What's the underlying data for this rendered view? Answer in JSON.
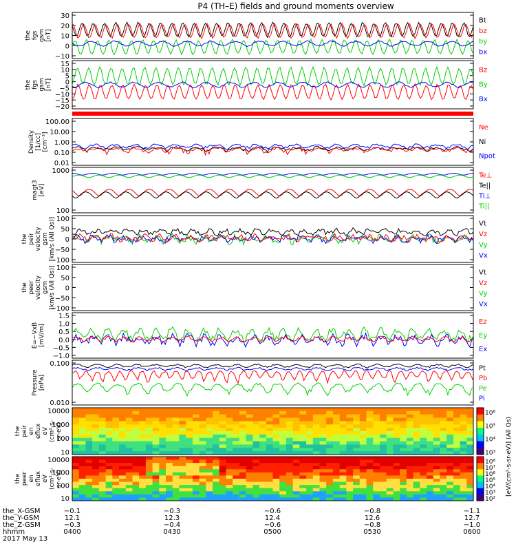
{
  "title": "P4 (TH–E) fields and ground moments overview",
  "colors": {
    "black": "#000000",
    "red": "#ff0000",
    "green": "#00d000",
    "blue": "#0000ff"
  },
  "chart_data": [
    {
      "type": "line",
      "ylabel": [
        "the",
        "fgs",
        "gsm",
        "[nT]"
      ],
      "yrange": [
        -10,
        30
      ],
      "yticks": [
        "30",
        "20",
        "10",
        "0",
        "−10"
      ],
      "legend": [
        {
          "name": "Bt",
          "color": "black"
        },
        {
          "name": "bz",
          "color": "red"
        },
        {
          "name": "by",
          "color": "green"
        },
        {
          "name": "bx",
          "color": "blue"
        }
      ],
      "series": [
        {
          "name": "Bt",
          "color": "black",
          "base": 15,
          "amp": 6,
          "period": 0.028,
          "noise": 0.6,
          "start": 0,
          "end": 1
        },
        {
          "name": "bz",
          "color": "red",
          "base": 14,
          "amp": 6,
          "period": 0.028,
          "noise": 0.6,
          "start": 0,
          "end": 1
        },
        {
          "name": "by",
          "color": "green",
          "base": 0,
          "amp": 6,
          "period": 0.028,
          "noise": 0.8,
          "start": 0,
          "end": 1
        },
        {
          "name": "bx",
          "color": "blue",
          "base": 3,
          "amp": 2,
          "period": 0.06,
          "noise": 0.6,
          "start": 0,
          "end": 1
        }
      ]
    },
    {
      "type": "line",
      "ylabel": [
        "the",
        "fgs",
        "gsm",
        "[nT]"
      ],
      "yrange": [
        -22,
        18
      ],
      "yticks": [
        "15",
        "10",
        "5",
        "0",
        "−5",
        "−10",
        "−15",
        "−20"
      ],
      "legend": [
        {
          "name": "Bz",
          "color": "red"
        },
        {
          "name": "By",
          "color": "green"
        },
        {
          "name": "Bx",
          "color": "blue"
        }
      ],
      "series": [
        {
          "name": "Bz",
          "color": "red",
          "base": -8,
          "amp": 6,
          "period": 0.028,
          "noise": 0.7,
          "start": 0,
          "end": 1
        },
        {
          "name": "By",
          "color": "green",
          "base": 5,
          "amp": 7,
          "period": 0.028,
          "noise": 0.8,
          "start": 0,
          "end": 1
        },
        {
          "name": "Bx",
          "color": "blue",
          "base": -2,
          "amp": 2,
          "period": 0.06,
          "noise": 0.5,
          "start": 0,
          "end": 1
        }
      ]
    },
    {
      "type": "line",
      "log": true,
      "ylabel": [
        "Density",
        "[1/cc]",
        "[cm⁻³]"
      ],
      "yrange": [
        0.01,
        200
      ],
      "yticks": [
        "100.00",
        "10.00",
        "1.00",
        "0.10",
        "0.01"
      ],
      "legend": [
        {
          "name": "Ne",
          "color": "red"
        },
        {
          "name": "Ni",
          "color": "black"
        },
        {
          "name": "Npot",
          "color": "blue"
        }
      ],
      "series": [
        {
          "name": "Npot",
          "color": "blue",
          "base": 0.6,
          "amp": 0.2,
          "period": 0.05,
          "noise": 0.15,
          "start": 0,
          "end": 1
        },
        {
          "name": "Ni",
          "color": "black",
          "base": 0.35,
          "amp": 0.1,
          "period": 0.05,
          "noise": 0.1,
          "start": 0,
          "end": 1
        },
        {
          "name": "Ne",
          "color": "red",
          "base": 0.28,
          "amp": 0.1,
          "period": 0.05,
          "noise": 0.1,
          "start": 0,
          "end": 1
        }
      ]
    },
    {
      "type": "line",
      "log": true,
      "ylabel": [
        "magt3",
        "[eV]"
      ],
      "yrange": [
        40,
        20000
      ],
      "yticks": [
        "1000",
        "100"
      ],
      "legend": [
        {
          "name": "Te⊥",
          "color": "red"
        },
        {
          "name": "Te||",
          "color": "black"
        },
        {
          "name": "Ti⊥",
          "color": "blue"
        },
        {
          "name": "Ti||",
          "color": "green"
        }
      ],
      "series": [
        {
          "name": "Ti⊥",
          "color": "blue",
          "base": 8000,
          "amp": 1000,
          "period": 0.05,
          "noise": 0.05,
          "start": 0,
          "end": 1
        },
        {
          "name": "Ti||",
          "color": "green",
          "base": 6000,
          "amp": 1000,
          "period": 0.05,
          "noise": 0.05,
          "start": 0,
          "end": 1
        },
        {
          "name": "Te⊥",
          "color": "red",
          "base": 700,
          "amp": 300,
          "period": 0.05,
          "noise": 0.05,
          "start": 0,
          "end": 1
        },
        {
          "name": "Te||",
          "color": "black",
          "base": 500,
          "amp": 200,
          "period": 0.05,
          "noise": 0.05,
          "start": 0,
          "end": 1
        }
      ]
    },
    {
      "type": "line",
      "ylabel": [
        "the",
        "peir",
        "velocity",
        "gsm",
        "[km/s (All Qs)]"
      ],
      "yrange": [
        -100,
        100
      ],
      "yticks": [
        "100",
        "50",
        "0",
        "−50",
        "−100"
      ],
      "legend": [
        {
          "name": "Vt",
          "color": "black"
        },
        {
          "name": "Vz",
          "color": "red"
        },
        {
          "name": "Vy",
          "color": "green"
        },
        {
          "name": "Vx",
          "color": "blue"
        }
      ],
      "series": [
        {
          "name": "Vt",
          "color": "black",
          "base": 30,
          "amp": 8,
          "period": 0.04,
          "noise": 10,
          "start": 0,
          "end": 1
        },
        {
          "name": "Vy",
          "color": "green",
          "base": 0,
          "amp": 10,
          "period": 0.04,
          "noise": 15,
          "start": 0,
          "end": 1
        },
        {
          "name": "Vx",
          "color": "blue",
          "base": 0,
          "amp": 8,
          "period": 0.04,
          "noise": 12,
          "start": 0,
          "end": 1
        },
        {
          "name": "Vz",
          "color": "red",
          "base": 5,
          "amp": 8,
          "period": 0.04,
          "noise": 12,
          "start": 0,
          "end": 1
        }
      ]
    },
    {
      "type": "line",
      "ylabel": [
        "the",
        "peer",
        "velocity",
        "gsm",
        "[km/s (All Qs)]"
      ],
      "yrange": [
        -100,
        100
      ],
      "yticks": [
        "100",
        "50",
        "0",
        "−50",
        "−100"
      ],
      "legend": [
        {
          "name": "Vt",
          "color": "black"
        },
        {
          "name": "Vz",
          "color": "red"
        },
        {
          "name": "Vy",
          "color": "green"
        },
        {
          "name": "Vx",
          "color": "blue"
        }
      ],
      "series": []
    },
    {
      "type": "line",
      "ylabel": [
        "E=−VxB",
        "[mV/m]"
      ],
      "yrange": [
        -1.0,
        1.5
      ],
      "yticks": [
        "1.5",
        "1.0",
        "0.5",
        "0.0",
        "−0.5",
        "−1.0"
      ],
      "legend": [
        {
          "name": "Ez",
          "color": "red"
        },
        {
          "name": "Ey",
          "color": "green"
        },
        {
          "name": "Ex",
          "color": "blue"
        }
      ],
      "series": [
        {
          "name": "Ey",
          "color": "green",
          "base": 0.3,
          "amp": 0.25,
          "period": 0.04,
          "noise": 0.18,
          "start": 0,
          "end": 1
        },
        {
          "name": "Ex",
          "color": "blue",
          "base": 0.0,
          "amp": 0.2,
          "period": 0.04,
          "noise": 0.2,
          "start": 0,
          "end": 1
        },
        {
          "name": "Ez",
          "color": "red",
          "base": 0.05,
          "amp": 0.1,
          "period": 0.04,
          "noise": 0.08,
          "start": 0,
          "end": 1
        }
      ]
    },
    {
      "type": "line",
      "log": true,
      "ylabel": [
        "Pressure",
        "[nPa]"
      ],
      "yrange": [
        0.002,
        0.6
      ],
      "yticks": [
        "0.100",
        "0.010"
      ],
      "legend": [
        {
          "name": "Pt",
          "color": "black"
        },
        {
          "name": "Pb",
          "color": "red"
        },
        {
          "name": "Pe",
          "color": "green"
        },
        {
          "name": "Pi",
          "color": "blue"
        }
      ],
      "series": [
        {
          "name": "Pt",
          "color": "black",
          "base": 0.3,
          "amp": 0.05,
          "period": 0.05,
          "noise": 0.03,
          "start": 0,
          "end": 1
        },
        {
          "name": "Pi",
          "color": "blue",
          "base": 0.2,
          "amp": 0.03,
          "period": 0.05,
          "noise": 0.02,
          "start": 0,
          "end": 1
        },
        {
          "name": "Pb",
          "color": "red",
          "base": 0.1,
          "amp": 0.05,
          "period": 0.028,
          "noise": 0.02,
          "start": 0,
          "end": 1
        },
        {
          "name": "Pe",
          "color": "green",
          "base": 0.02,
          "amp": 0.01,
          "period": 0.05,
          "noise": 0.004,
          "start": 0,
          "end": 1
        }
      ]
    },
    {
      "type": "heatmap",
      "ylabel": [
        "the",
        "peir",
        "en",
        "eflux",
        "eV",
        "(cm²-s-",
        "sr-eV)"
      ],
      "yticks": [
        "10000",
        "1000",
        "100",
        "10"
      ],
      "colorbar_ticks": [
        "10⁶",
        "10⁵",
        "10⁴",
        "10³"
      ],
      "colorbar_label": "[eV/(cm²-s-sr-eV)] (All Qs)"
    },
    {
      "type": "heatmap",
      "ylabel": [
        "the",
        "peer",
        "en",
        "eflux",
        "eV",
        "(cm²-s-",
        "sr-eV)"
      ],
      "yticks": [
        "10000",
        "1000",
        "100",
        "10"
      ],
      "colorbar_ticks": [
        "10⁸",
        "10⁷",
        "10⁶",
        "10⁵",
        "10⁴",
        "10³",
        "10²"
      ],
      "colorbar_label": "[eV/(cm²-s-sr-eV)] (All Qs)"
    }
  ],
  "xaxis": {
    "rows": [
      {
        "label": "the_X-GSM",
        "values": [
          "−0.1",
          "−0.3",
          "−0.6",
          "−0.8",
          "−1.1"
        ]
      },
      {
        "label": "the_Y-GSM",
        "values": [
          "12.1",
          "12.3",
          "12.4",
          "12.6",
          "12.7"
        ]
      },
      {
        "label": "the_Z-GSM",
        "values": [
          "−0.3",
          "−0.4",
          "−0.6",
          "−0.8",
          "−1.0"
        ]
      },
      {
        "label": "hhmm",
        "values": [
          "0400",
          "0430",
          "0500",
          "0530",
          "0600"
        ]
      }
    ],
    "date": "2017 May 13"
  }
}
